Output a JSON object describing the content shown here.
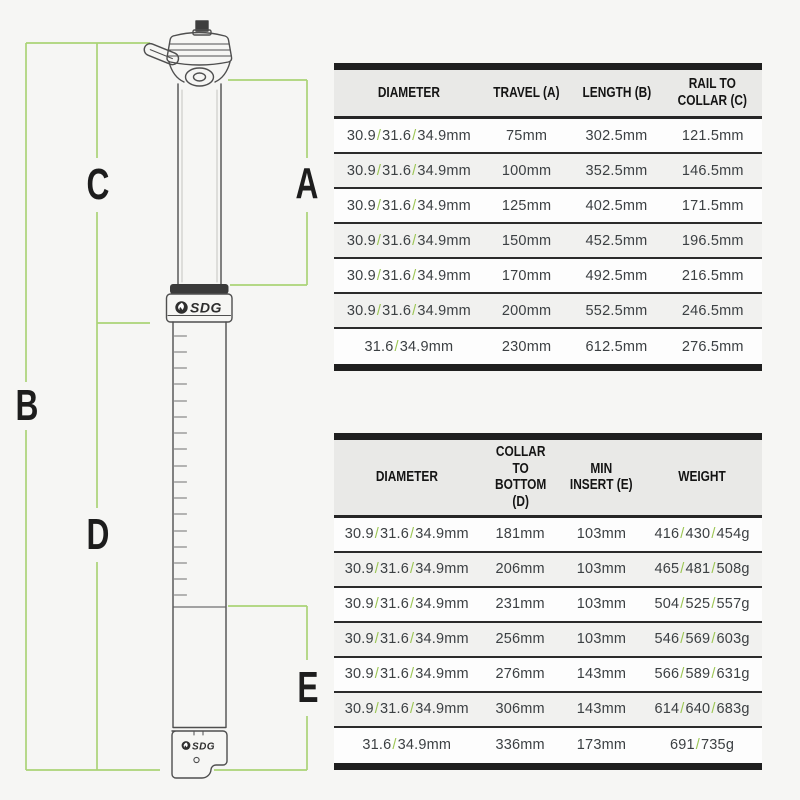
{
  "colors": {
    "background": "#f6f6f4",
    "line_green": "#abd377",
    "slash_green": "#9cc653",
    "bar_black": "#1f1f1f"
  },
  "diagram": {
    "brand": "SDG",
    "labels": {
      "a": "A",
      "b": "B",
      "c": "C",
      "d": "D",
      "e": "E"
    }
  },
  "tables": [
    {
      "headers": [
        "DIAMETER",
        "TRAVEL (A)",
        "LENGTH (B)",
        "RAIL TO\nCOLLAR (C)"
      ],
      "col_widths": [
        "35%",
        "20%",
        "22%",
        "23%"
      ],
      "rows": [
        [
          "30.9 / 31.6 / 34.9mm",
          "75mm",
          "302.5mm",
          "121.5mm"
        ],
        [
          "30.9 / 31.6 / 34.9mm",
          "100mm",
          "352.5mm",
          "146.5mm"
        ],
        [
          "30.9 / 31.6 / 34.9mm",
          "125mm",
          "402.5mm",
          "171.5mm"
        ],
        [
          "30.9 / 31.6 / 34.9mm",
          "150mm",
          "452.5mm",
          "196.5mm"
        ],
        [
          "30.9 / 31.6 / 34.9mm",
          "170mm",
          "492.5mm",
          "216.5mm"
        ],
        [
          "30.9 / 31.6 / 34.9mm",
          "200mm",
          "552.5mm",
          "246.5mm"
        ],
        [
          "31.6 / 34.9mm",
          "230mm",
          "612.5mm",
          "276.5mm"
        ]
      ]
    },
    {
      "headers": [
        "DIAMETER",
        "COLLAR TO\nBOTTOM (D)",
        "MIN\nINSERT (E)",
        "WEIGHT"
      ],
      "col_widths": [
        "34%",
        "19%",
        "19%",
        "28%"
      ],
      "rows": [
        [
          "30.9 / 31.6 / 34.9mm",
          "181mm",
          "103mm",
          "416 / 430 / 454g"
        ],
        [
          "30.9 / 31.6 / 34.9mm",
          "206mm",
          "103mm",
          "465 / 481 / 508g"
        ],
        [
          "30.9 / 31.6 / 34.9mm",
          "231mm",
          "103mm",
          "504 / 525 / 557g"
        ],
        [
          "30.9 / 31.6 / 34.9mm",
          "256mm",
          "103mm",
          "546 / 569 / 603g"
        ],
        [
          "30.9 / 31.6 / 34.9mm",
          "276mm",
          "143mm",
          "566 / 589 / 631g"
        ],
        [
          "30.9 / 31.6 / 34.9mm",
          "306mm",
          "143mm",
          "614 / 640 / 683g"
        ],
        [
          "31.6 / 34.9mm",
          "336mm",
          "173mm",
          "691 / 735g"
        ]
      ]
    }
  ]
}
